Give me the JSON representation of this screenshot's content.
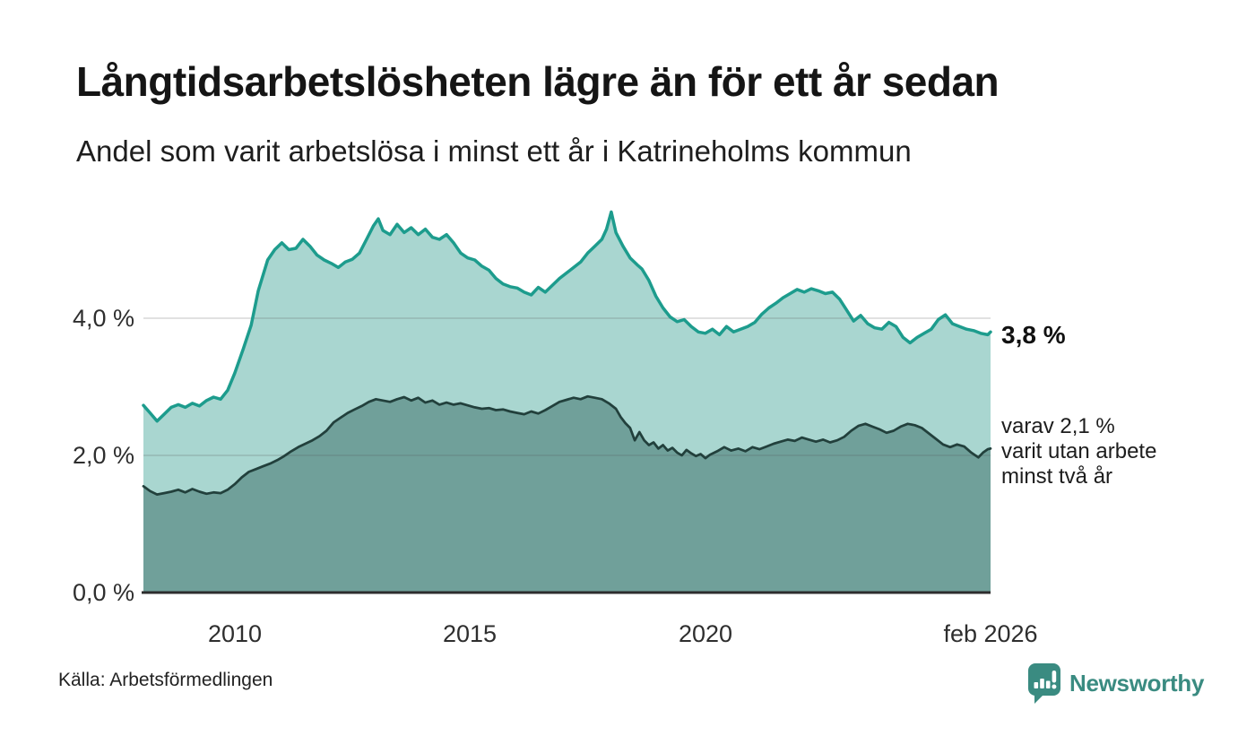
{
  "footer": {
    "source": "Källa: Arbetsförmedlingen",
    "brand": "Newsworthy"
  },
  "icons": {
    "logo": "newsworthy-speech-bubble-bar-chart-icon"
  },
  "colors": {
    "total_line": "#1d9c8d",
    "total_fill": "#a9d6d0",
    "twoyear_line": "#22403c",
    "twoyear_fill": "#70a09a",
    "gridline": "rgba(90,90,90,0.18)",
    "baseline": "#2d2d2d",
    "brand_teal": "#3a8b81"
  },
  "chart_data": {
    "type": "area",
    "title": "Långtidsarbetslösheten lägre än för ett år sedan",
    "subtitle": "Andel som varit arbetslösa i minst ett år i Katrineholms kommun",
    "unit": "%",
    "grid": true,
    "legend_position": "right-of-line-end",
    "x_axis": {
      "range": [
        2008.06,
        2026.06
      ],
      "ticks": [
        {
          "label": "2010",
          "value": 2010
        },
        {
          "label": "2015",
          "value": 2015
        },
        {
          "label": "2020",
          "value": 2020
        },
        {
          "label": "feb 2026",
          "value": 2026.06
        }
      ]
    },
    "y_axis": {
      "range": [
        0,
        5.8
      ],
      "ticks": [
        {
          "label": "0,0 %",
          "value": 0
        },
        {
          "label": "2,0 %",
          "value": 2
        },
        {
          "label": "4,0 %",
          "value": 4
        }
      ]
    },
    "annotations": {
      "latest_total": "3,8 %",
      "sub_lines": [
        "varav 2,1 %",
        "varit utan arbete",
        "minst två år"
      ]
    },
    "series": [
      {
        "name": "Andel som varit arbetslösa minst ett år",
        "line_color": "#1d9c8d",
        "fill_color": "#a9d6d0",
        "points": [
          [
            2008.06,
            2.73
          ],
          [
            2008.2,
            2.62
          ],
          [
            2008.35,
            2.5
          ],
          [
            2008.5,
            2.6
          ],
          [
            2008.65,
            2.7
          ],
          [
            2008.8,
            2.74
          ],
          [
            2008.95,
            2.7
          ],
          [
            2009.1,
            2.76
          ],
          [
            2009.25,
            2.72
          ],
          [
            2009.4,
            2.8
          ],
          [
            2009.55,
            2.85
          ],
          [
            2009.7,
            2.82
          ],
          [
            2009.85,
            2.95
          ],
          [
            2010.0,
            3.2
          ],
          [
            2010.18,
            3.55
          ],
          [
            2010.35,
            3.9
          ],
          [
            2010.5,
            4.4
          ],
          [
            2010.7,
            4.85
          ],
          [
            2010.85,
            5.0
          ],
          [
            2011.0,
            5.1
          ],
          [
            2011.15,
            5.0
          ],
          [
            2011.3,
            5.02
          ],
          [
            2011.45,
            5.15
          ],
          [
            2011.6,
            5.05
          ],
          [
            2011.75,
            4.92
          ],
          [
            2011.9,
            4.85
          ],
          [
            2012.05,
            4.8
          ],
          [
            2012.2,
            4.74
          ],
          [
            2012.35,
            4.82
          ],
          [
            2012.5,
            4.86
          ],
          [
            2012.65,
            4.95
          ],
          [
            2012.8,
            5.15
          ],
          [
            2012.95,
            5.35
          ],
          [
            2013.05,
            5.45
          ],
          [
            2013.15,
            5.28
          ],
          [
            2013.3,
            5.22
          ],
          [
            2013.45,
            5.37
          ],
          [
            2013.6,
            5.25
          ],
          [
            2013.75,
            5.32
          ],
          [
            2013.9,
            5.22
          ],
          [
            2014.05,
            5.3
          ],
          [
            2014.2,
            5.18
          ],
          [
            2014.35,
            5.15
          ],
          [
            2014.5,
            5.22
          ],
          [
            2014.65,
            5.1
          ],
          [
            2014.8,
            4.95
          ],
          [
            2014.95,
            4.88
          ],
          [
            2015.1,
            4.85
          ],
          [
            2015.25,
            4.76
          ],
          [
            2015.4,
            4.7
          ],
          [
            2015.55,
            4.58
          ],
          [
            2015.7,
            4.5
          ],
          [
            2015.85,
            4.46
          ],
          [
            2016.0,
            4.44
          ],
          [
            2016.15,
            4.38
          ],
          [
            2016.3,
            4.34
          ],
          [
            2016.45,
            4.45
          ],
          [
            2016.6,
            4.38
          ],
          [
            2016.75,
            4.48
          ],
          [
            2016.9,
            4.58
          ],
          [
            2017.05,
            4.66
          ],
          [
            2017.2,
            4.74
          ],
          [
            2017.35,
            4.82
          ],
          [
            2017.5,
            4.95
          ],
          [
            2017.65,
            5.05
          ],
          [
            2017.8,
            5.15
          ],
          [
            2017.9,
            5.3
          ],
          [
            2018.0,
            5.55
          ],
          [
            2018.1,
            5.25
          ],
          [
            2018.25,
            5.05
          ],
          [
            2018.4,
            4.88
          ],
          [
            2018.55,
            4.78
          ],
          [
            2018.65,
            4.72
          ],
          [
            2018.8,
            4.55
          ],
          [
            2018.95,
            4.32
          ],
          [
            2019.1,
            4.15
          ],
          [
            2019.25,
            4.02
          ],
          [
            2019.4,
            3.95
          ],
          [
            2019.55,
            3.98
          ],
          [
            2019.7,
            3.88
          ],
          [
            2019.85,
            3.8
          ],
          [
            2020.0,
            3.78
          ],
          [
            2020.15,
            3.84
          ],
          [
            2020.3,
            3.76
          ],
          [
            2020.45,
            3.88
          ],
          [
            2020.6,
            3.8
          ],
          [
            2020.75,
            3.84
          ],
          [
            2020.9,
            3.88
          ],
          [
            2021.05,
            3.94
          ],
          [
            2021.2,
            4.06
          ],
          [
            2021.35,
            4.15
          ],
          [
            2021.5,
            4.22
          ],
          [
            2021.65,
            4.3
          ],
          [
            2021.8,
            4.36
          ],
          [
            2021.95,
            4.42
          ],
          [
            2022.1,
            4.38
          ],
          [
            2022.25,
            4.43
          ],
          [
            2022.4,
            4.4
          ],
          [
            2022.55,
            4.36
          ],
          [
            2022.7,
            4.38
          ],
          [
            2022.85,
            4.28
          ],
          [
            2023.0,
            4.12
          ],
          [
            2023.15,
            3.96
          ],
          [
            2023.3,
            4.04
          ],
          [
            2023.45,
            3.92
          ],
          [
            2023.6,
            3.86
          ],
          [
            2023.75,
            3.84
          ],
          [
            2023.9,
            3.94
          ],
          [
            2024.05,
            3.88
          ],
          [
            2024.2,
            3.72
          ],
          [
            2024.35,
            3.64
          ],
          [
            2024.5,
            3.72
          ],
          [
            2024.65,
            3.78
          ],
          [
            2024.8,
            3.84
          ],
          [
            2024.95,
            3.98
          ],
          [
            2025.1,
            4.05
          ],
          [
            2025.25,
            3.92
          ],
          [
            2025.4,
            3.88
          ],
          [
            2025.55,
            3.84
          ],
          [
            2025.7,
            3.82
          ],
          [
            2025.85,
            3.78
          ],
          [
            2026.0,
            3.76
          ],
          [
            2026.06,
            3.8
          ]
        ]
      },
      {
        "name": "varav arbetslösa minst två år",
        "line_color": "#22403c",
        "fill_color": "#70a09a",
        "points": [
          [
            2008.06,
            1.55
          ],
          [
            2008.2,
            1.48
          ],
          [
            2008.35,
            1.43
          ],
          [
            2008.5,
            1.45
          ],
          [
            2008.65,
            1.47
          ],
          [
            2008.8,
            1.5
          ],
          [
            2008.95,
            1.46
          ],
          [
            2009.1,
            1.51
          ],
          [
            2009.25,
            1.47
          ],
          [
            2009.4,
            1.44
          ],
          [
            2009.55,
            1.46
          ],
          [
            2009.7,
            1.45
          ],
          [
            2009.85,
            1.5
          ],
          [
            2010.0,
            1.58
          ],
          [
            2010.15,
            1.68
          ],
          [
            2010.3,
            1.76
          ],
          [
            2010.45,
            1.8
          ],
          [
            2010.6,
            1.84
          ],
          [
            2010.75,
            1.88
          ],
          [
            2010.9,
            1.93
          ],
          [
            2011.05,
            1.99
          ],
          [
            2011.2,
            2.06
          ],
          [
            2011.35,
            2.12
          ],
          [
            2011.5,
            2.17
          ],
          [
            2011.65,
            2.22
          ],
          [
            2011.8,
            2.28
          ],
          [
            2011.95,
            2.36
          ],
          [
            2012.1,
            2.48
          ],
          [
            2012.25,
            2.55
          ],
          [
            2012.4,
            2.62
          ],
          [
            2012.55,
            2.67
          ],
          [
            2012.7,
            2.72
          ],
          [
            2012.85,
            2.78
          ],
          [
            2013.0,
            2.82
          ],
          [
            2013.15,
            2.8
          ],
          [
            2013.3,
            2.78
          ],
          [
            2013.45,
            2.82
          ],
          [
            2013.6,
            2.85
          ],
          [
            2013.75,
            2.8
          ],
          [
            2013.9,
            2.84
          ],
          [
            2014.05,
            2.77
          ],
          [
            2014.2,
            2.8
          ],
          [
            2014.35,
            2.74
          ],
          [
            2014.5,
            2.77
          ],
          [
            2014.65,
            2.74
          ],
          [
            2014.8,
            2.76
          ],
          [
            2014.95,
            2.73
          ],
          [
            2015.1,
            2.7
          ],
          [
            2015.25,
            2.68
          ],
          [
            2015.4,
            2.69
          ],
          [
            2015.55,
            2.66
          ],
          [
            2015.7,
            2.67
          ],
          [
            2015.85,
            2.64
          ],
          [
            2016.0,
            2.62
          ],
          [
            2016.15,
            2.6
          ],
          [
            2016.3,
            2.64
          ],
          [
            2016.45,
            2.61
          ],
          [
            2016.6,
            2.66
          ],
          [
            2016.75,
            2.72
          ],
          [
            2016.9,
            2.78
          ],
          [
            2017.05,
            2.81
          ],
          [
            2017.2,
            2.84
          ],
          [
            2017.35,
            2.82
          ],
          [
            2017.5,
            2.86
          ],
          [
            2017.65,
            2.84
          ],
          [
            2017.8,
            2.82
          ],
          [
            2017.95,
            2.76
          ],
          [
            2018.1,
            2.68
          ],
          [
            2018.2,
            2.56
          ],
          [
            2018.3,
            2.47
          ],
          [
            2018.4,
            2.4
          ],
          [
            2018.5,
            2.22
          ],
          [
            2018.6,
            2.34
          ],
          [
            2018.7,
            2.22
          ],
          [
            2018.8,
            2.15
          ],
          [
            2018.9,
            2.19
          ],
          [
            2019.0,
            2.1
          ],
          [
            2019.1,
            2.15
          ],
          [
            2019.2,
            2.07
          ],
          [
            2019.3,
            2.11
          ],
          [
            2019.4,
            2.04
          ],
          [
            2019.5,
            2.0
          ],
          [
            2019.6,
            2.08
          ],
          [
            2019.7,
            2.03
          ],
          [
            2019.8,
            1.99
          ],
          [
            2019.9,
            2.02
          ],
          [
            2020.0,
            1.96
          ],
          [
            2020.1,
            2.01
          ],
          [
            2020.25,
            2.06
          ],
          [
            2020.4,
            2.12
          ],
          [
            2020.55,
            2.07
          ],
          [
            2020.7,
            2.1
          ],
          [
            2020.85,
            2.06
          ],
          [
            2021.0,
            2.12
          ],
          [
            2021.15,
            2.09
          ],
          [
            2021.3,
            2.13
          ],
          [
            2021.45,
            2.17
          ],
          [
            2021.6,
            2.2
          ],
          [
            2021.75,
            2.23
          ],
          [
            2021.9,
            2.21
          ],
          [
            2022.05,
            2.26
          ],
          [
            2022.2,
            2.23
          ],
          [
            2022.35,
            2.2
          ],
          [
            2022.5,
            2.23
          ],
          [
            2022.65,
            2.19
          ],
          [
            2022.8,
            2.22
          ],
          [
            2022.95,
            2.27
          ],
          [
            2023.1,
            2.36
          ],
          [
            2023.25,
            2.43
          ],
          [
            2023.4,
            2.46
          ],
          [
            2023.55,
            2.42
          ],
          [
            2023.7,
            2.38
          ],
          [
            2023.85,
            2.33
          ],
          [
            2024.0,
            2.36
          ],
          [
            2024.15,
            2.42
          ],
          [
            2024.3,
            2.46
          ],
          [
            2024.45,
            2.44
          ],
          [
            2024.6,
            2.4
          ],
          [
            2024.75,
            2.32
          ],
          [
            2024.9,
            2.24
          ],
          [
            2025.05,
            2.16
          ],
          [
            2025.2,
            2.12
          ],
          [
            2025.35,
            2.16
          ],
          [
            2025.5,
            2.13
          ],
          [
            2025.65,
            2.04
          ],
          [
            2025.8,
            1.97
          ],
          [
            2025.9,
            2.04
          ],
          [
            2026.0,
            2.09
          ],
          [
            2026.06,
            2.1
          ]
        ]
      }
    ]
  }
}
